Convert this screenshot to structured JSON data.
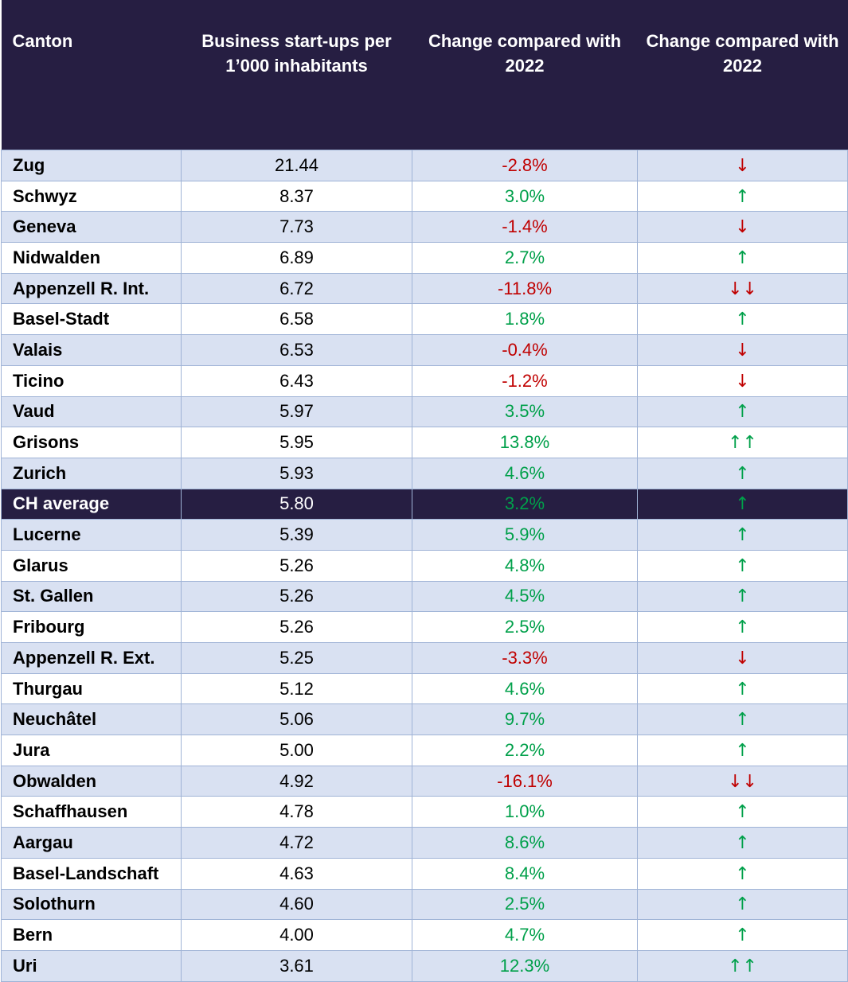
{
  "headers": {
    "canton": "Canton",
    "startups": "Business start-ups per 1’000 inhabitants",
    "change_pct": "Change compared with 2022",
    "change_arrow": "Change compared with 2022"
  },
  "colors": {
    "header_bg": "#261e42",
    "row_alt": "#d9e1f2",
    "positive": "#00a04a",
    "negative": "#c00000"
  },
  "rows": [
    {
      "canton": "Zug",
      "value": "21.44",
      "change": "-2.8%",
      "arrow": "↓"
    },
    {
      "canton": "Schwyz",
      "value": "8.37",
      "change": "3.0%",
      "arrow": "↑"
    },
    {
      "canton": "Geneva",
      "value": "7.73",
      "change": "-1.4%",
      "arrow": "↓"
    },
    {
      "canton": "Nidwalden",
      "value": "6.89",
      "change": "2.7%",
      "arrow": "↑"
    },
    {
      "canton": "Appenzell R. Int.",
      "value": "6.72",
      "change": "-11.8%",
      "arrow": "↓↓"
    },
    {
      "canton": "Basel-Stadt",
      "value": "6.58",
      "change": "1.8%",
      "arrow": "↑"
    },
    {
      "canton": "Valais",
      "value": "6.53",
      "change": "-0.4%",
      "arrow": "↓"
    },
    {
      "canton": "Ticino",
      "value": "6.43",
      "change": "-1.2%",
      "arrow": "↓"
    },
    {
      "canton": "Vaud",
      "value": "5.97",
      "change": "3.5%",
      "arrow": "↑"
    },
    {
      "canton": "Grisons",
      "value": "5.95",
      "change": "13.8%",
      "arrow": "↑↑"
    },
    {
      "canton": "Zurich",
      "value": "5.93",
      "change": "4.6%",
      "arrow": "↑"
    },
    {
      "canton": "CH average",
      "value": "5.80",
      "change": "3.2%",
      "arrow": "↑",
      "highlight": true
    },
    {
      "canton": "Lucerne",
      "value": "5.39",
      "change": "5.9%",
      "arrow": "↑"
    },
    {
      "canton": "Glarus",
      "value": "5.26",
      "change": "4.8%",
      "arrow": "↑"
    },
    {
      "canton": "St. Gallen",
      "value": "5.26",
      "change": "4.5%",
      "arrow": "↑"
    },
    {
      "canton": "Fribourg",
      "value": "5.26",
      "change": "2.5%",
      "arrow": "↑"
    },
    {
      "canton": "Appenzell R. Ext.",
      "value": "5.25",
      "change": "-3.3%",
      "arrow": "↓"
    },
    {
      "canton": "Thurgau",
      "value": "5.12",
      "change": "4.6%",
      "arrow": "↑"
    },
    {
      "canton": "Neuchâtel",
      "value": "5.06",
      "change": "9.7%",
      "arrow": "↑"
    },
    {
      "canton": "Jura",
      "value": "5.00",
      "change": "2.2%",
      "arrow": "↑"
    },
    {
      "canton": "Obwalden",
      "value": "4.92",
      "change": "-16.1%",
      "arrow": "↓↓"
    },
    {
      "canton": "Schaffhausen",
      "value": "4.78",
      "change": "1.0%",
      "arrow": "↑"
    },
    {
      "canton": "Aargau",
      "value": "4.72",
      "change": "8.6%",
      "arrow": "↑"
    },
    {
      "canton": "Basel-Landschaft",
      "value": "4.63",
      "change": "8.4%",
      "arrow": "↑"
    },
    {
      "canton": "Solothurn",
      "value": "4.60",
      "change": "2.5%",
      "arrow": "↑"
    },
    {
      "canton": "Bern",
      "value": "4.00",
      "change": "4.7%",
      "arrow": "↑"
    },
    {
      "canton": "Uri",
      "value": "3.61",
      "change": "12.3%",
      "arrow": "↑↑"
    }
  ]
}
